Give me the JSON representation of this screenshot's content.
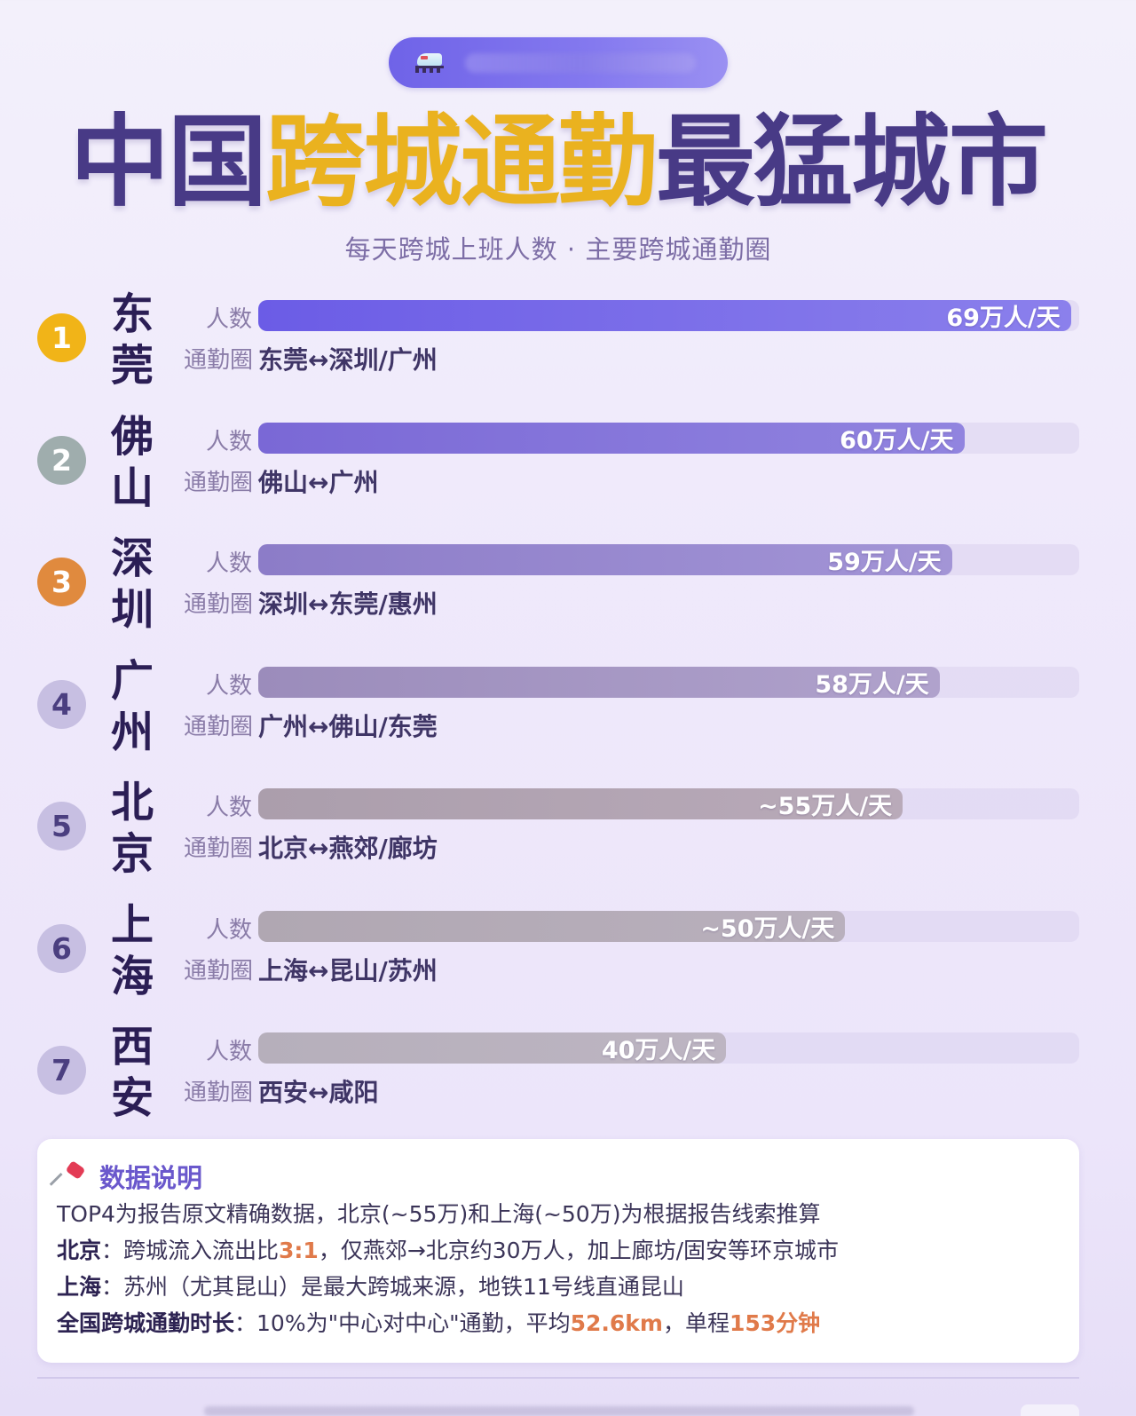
{
  "banner": {
    "icon": "high-speed-train-icon"
  },
  "header": {
    "title_part1": "中国",
    "title_part2": "跨城通勤",
    "title_part3": "最猛城市",
    "subtitle": "每天跨城上班人数 · 主要跨城通勤圈"
  },
  "labels": {
    "people": "人数",
    "circle": "通勤圈"
  },
  "colors": {
    "title_dark": "#483a86",
    "title_gold": "#eab21f",
    "highlight": "#e07a4a",
    "note_heading": "#6a58cc"
  },
  "rows": [
    {
      "rank": "1",
      "city_top": "东",
      "city_bottom": "莞",
      "value_label": "69万人/天",
      "route": "东莞↔深圳/广州",
      "badge_color": "#f1b418",
      "badge_text_color": "#ffffff",
      "bar_from": "#6b5ce6",
      "bar_to": "#8b80ec",
      "pct": 99
    },
    {
      "rank": "2",
      "city_top": "佛",
      "city_bottom": "山",
      "value_label": "60万人/天",
      "route": "佛山↔广州",
      "badge_color": "#9fadad",
      "badge_text_color": "#ffffff",
      "bar_from": "#7a68d6",
      "bar_to": "#9184df",
      "pct": 86
    },
    {
      "rank": "3",
      "city_top": "深",
      "city_bottom": "圳",
      "value_label": "59万人/天",
      "route": "深圳↔东莞/惠州",
      "badge_color": "#e08a3e",
      "badge_text_color": "#ffffff",
      "bar_from": "#8c7cc8",
      "bar_to": "#a395d6",
      "pct": 84.5
    },
    {
      "rank": "4",
      "city_top": "广",
      "city_bottom": "州",
      "value_label": "58万人/天",
      "route": "广州↔佛山/东莞",
      "badge_color": "#c7bfe2",
      "badge_text_color": "#4b3f80",
      "bar_from": "#9b8cbb",
      "bar_to": "#b0a2cc",
      "pct": 83
    },
    {
      "rank": "5",
      "city_top": "北",
      "city_bottom": "京",
      "value_label": "~55万人/天",
      "route": "北京↔燕郊/廊坊",
      "badge_color": "#c7bfe2",
      "badge_text_color": "#4b3f80",
      "bar_from": "#ab9eac",
      "bar_to": "#b9aab9",
      "pct": 78.5
    },
    {
      "rank": "6",
      "city_top": "上",
      "city_bottom": "海",
      "value_label": "~50万人/天",
      "route": "上海↔昆山/苏州",
      "badge_color": "#c7bfe2",
      "badge_text_color": "#4b3f80",
      "bar_from": "#b0a7b2",
      "bar_to": "#b9b0bd",
      "pct": 71.5
    },
    {
      "rank": "7",
      "city_top": "西",
      "city_bottom": "安",
      "value_label": "40万人/天",
      "route": "西安↔咸阳",
      "badge_color": "#c7bfe2",
      "badge_text_color": "#4b3f80",
      "bar_from": "#b6afbb",
      "bar_to": "#bdb5c2",
      "pct": 57
    }
  ],
  "note": {
    "icon": "pushpin-icon",
    "heading": "数据说明",
    "line1": "TOP4为报告原文精确数据，北京(~55万)和上海(~50万)为根据报告线索推算",
    "line2_bold": "北京",
    "line2_a": "：跨城流入流出比",
    "line2_hl": "3:1",
    "line2_b": "，仅燕郊→北京约30万人，加上廊坊/固安等环京城市",
    "line3_bold": "上海",
    "line3_a": "：苏州（尤其昆山）是最大跨城来源，地铁11号线直通昆山",
    "line4_bold": "全国跨城通勤时长",
    "line4_a": "：10%为\"中心对中心\"通勤，平均",
    "line4_hl1": "52.6km",
    "line4_b": "，单程",
    "line4_hl2": "153分钟"
  },
  "chart_data": {
    "type": "bar",
    "orientation": "horizontal",
    "title": "中国跨城通勤最猛城市",
    "subtitle": "每天跨城上班人数 · 主要跨城通勤圈",
    "categories": [
      "东莞",
      "佛山",
      "深圳",
      "广州",
      "北京",
      "上海",
      "西安"
    ],
    "values": [
      69,
      60,
      59,
      58,
      55,
      50,
      40
    ],
    "value_labels": [
      "69万人/天",
      "60万人/天",
      "59万人/天",
      "58万人/天",
      "~55万人/天",
      "~50万人/天",
      "40万人/天"
    ],
    "estimated": [
      false,
      false,
      false,
      false,
      true,
      true,
      false
    ],
    "routes": [
      "东莞↔深圳/广州",
      "佛山↔广州",
      "深圳↔东莞/惠州",
      "广州↔佛山/东莞",
      "北京↔燕郊/廊坊",
      "上海↔昆山/苏州",
      "西安↔咸阳"
    ],
    "unit": "万人/天",
    "xlabel": "人数",
    "ylabel": "",
    "xlim": [
      0,
      70
    ],
    "grid": false,
    "legend": null
  }
}
